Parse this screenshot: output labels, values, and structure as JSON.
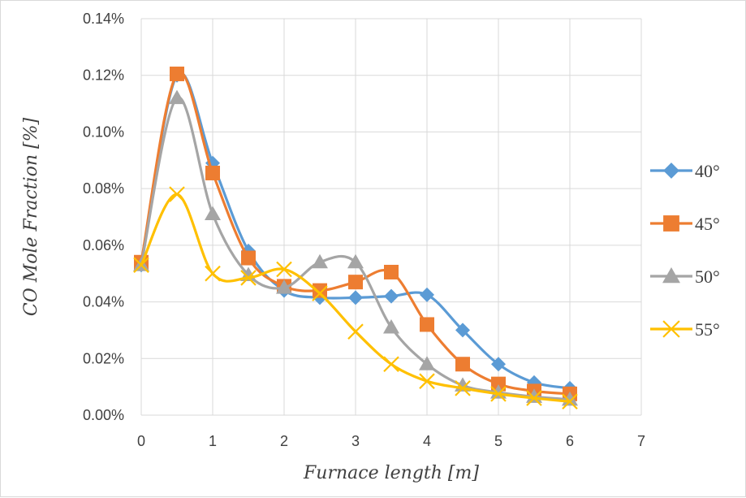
{
  "chart_data": {
    "type": "line",
    "xlabel": "Furnace length  [m]",
    "ylabel": "CO Mole Fraction [%]",
    "xlim": [
      0,
      7
    ],
    "ylim": [
      0,
      0.14
    ],
    "x_ticks": [
      "0",
      "1",
      "2",
      "3",
      "4",
      "5",
      "6",
      "7"
    ],
    "y_ticks": [
      "0.00%",
      "0.02%",
      "0.04%",
      "0.06%",
      "0.08%",
      "0.10%",
      "0.12%",
      "0.14%"
    ],
    "grid": true,
    "legend_position": "right",
    "x": [
      0,
      0.5,
      1,
      1.5,
      2,
      2.5,
      3,
      3.5,
      4,
      4.5,
      5,
      5.5,
      6
    ],
    "series": [
      {
        "name": "40°",
        "color": "#5b9bd5",
        "marker": "diamond",
        "values": [
          0.053,
          0.12,
          0.089,
          0.058,
          0.044,
          0.0415,
          0.0415,
          0.042,
          0.0425,
          0.03,
          0.018,
          0.0115,
          0.0095
        ]
      },
      {
        "name": "45°",
        "color": "#ed7d31",
        "marker": "square",
        "values": [
          0.054,
          0.1205,
          0.0855,
          0.0555,
          0.0455,
          0.044,
          0.047,
          0.0505,
          0.032,
          0.018,
          0.011,
          0.0085,
          0.0075
        ]
      },
      {
        "name": "50°",
        "color": "#a5a5a5",
        "marker": "triangle",
        "values": [
          0.053,
          0.112,
          0.071,
          0.0495,
          0.045,
          0.054,
          0.054,
          0.031,
          0.018,
          0.0105,
          0.008,
          0.0065,
          0.0055
        ]
      },
      {
        "name": "55°",
        "color": "#ffc000",
        "marker": "x",
        "values": [
          0.053,
          0.078,
          0.05,
          0.0485,
          0.0515,
          0.043,
          0.0295,
          0.018,
          0.012,
          0.0095,
          0.0075,
          0.006,
          0.0048
        ]
      }
    ]
  }
}
